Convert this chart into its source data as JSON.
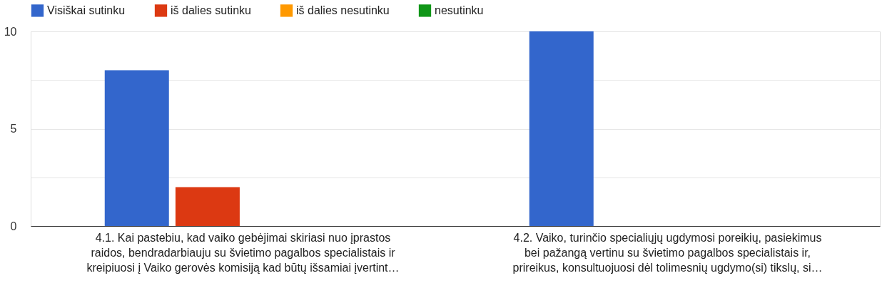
{
  "chart_data": {
    "type": "bar",
    "categories": [
      "4.1. Kai pastebiu, kad vaiko gebėjimai skiriasi nuo įprastos raidos, bendradarbiauju su švietimo pagalbos specialistais ir kreipiuosi į Vaiko gerovės komisiją kad būtų išsamiai įvertint…",
      "4.2. Vaiko, turinčio specialiųjų ugdymosi poreikių, pasiekimus bei pažangą vertinu su švietimo pagalbos specialistais ir, prireikus, konsultuojuosi dėl tolimesnių ugdymo(si) tikslų, si…"
    ],
    "series": [
      {
        "name": "Visiškai sutinku",
        "color": "#3366cc",
        "values": [
          8,
          10
        ]
      },
      {
        "name": "iš dalies sutinku",
        "color": "#dc3912",
        "values": [
          2,
          0
        ]
      },
      {
        "name": "iš dalies nesutinku",
        "color": "#ff9900",
        "values": [
          0,
          0
        ]
      },
      {
        "name": "nesutinku",
        "color": "#109618",
        "values": [
          0,
          0
        ]
      }
    ],
    "ylim": [
      0,
      10
    ],
    "yticks": [
      0,
      {
        "value": 2.5,
        "label": null
      },
      5,
      {
        "value": 7.5,
        "label": null
      },
      10
    ],
    "grid": "y",
    "legend": "top left"
  }
}
